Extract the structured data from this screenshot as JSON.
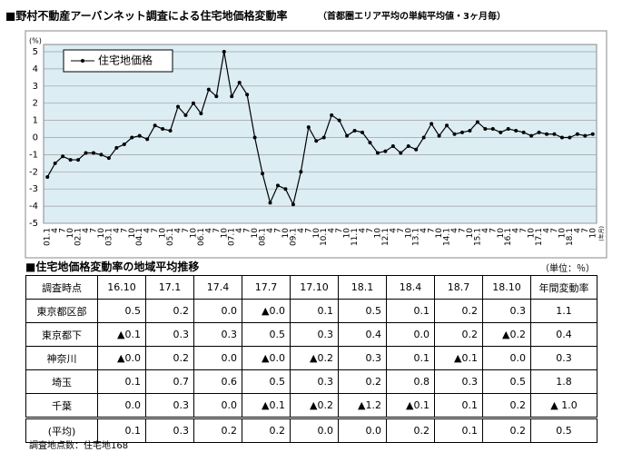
{
  "chart_data": {
    "type": "line",
    "title": "■野村不動産アーバンネット調査による住宅地価格変動率",
    "subtitle": "（首都圏エリア平均の単純平均値・3ヶ月毎）",
    "y_unit": "(%)",
    "x_unit": "(年月)",
    "categories": [
      "01.1",
      "4",
      "7",
      "10",
      "02.1",
      "4",
      "7",
      "10",
      "03.1",
      "4",
      "7",
      "10",
      "04.1",
      "4",
      "7",
      "10",
      "05.1",
      "4",
      "7",
      "10",
      "06.1",
      "4",
      "7",
      "10",
      "07.1",
      "4",
      "7",
      "10",
      "08.1",
      "4",
      "7",
      "10",
      "09.1",
      "4",
      "7",
      "10",
      "10.1",
      "4",
      "7",
      "10",
      "11.1",
      "4",
      "7",
      "10",
      "12.1",
      "4",
      "7",
      "10",
      "13.1",
      "4",
      "7",
      "10",
      "14.1",
      "4",
      "7",
      "10",
      "15.1",
      "4",
      "7",
      "10",
      "16.1",
      "4",
      "7",
      "10",
      "17.1",
      "4",
      "7",
      "10",
      "18.1",
      "4",
      "7",
      "10"
    ],
    "series": [
      {
        "name": "住宅地価格",
        "color": "#000000",
        "values": [
          -2.3,
          -1.5,
          -1.1,
          -1.3,
          -1.3,
          -0.9,
          -0.9,
          -1.0,
          -1.2,
          -0.6,
          -0.4,
          0.0,
          0.1,
          -0.1,
          0.7,
          0.5,
          0.4,
          1.8,
          1.3,
          2.0,
          1.4,
          2.8,
          2.4,
          5.0,
          2.4,
          3.2,
          2.5,
          0.0,
          -2.1,
          -3.8,
          -2.8,
          -3.0,
          -3.9,
          -2.0,
          0.6,
          -0.2,
          0.0,
          1.3,
          1.0,
          0.1,
          0.4,
          0.3,
          -0.3,
          -0.9,
          -0.8,
          -0.5,
          -0.9,
          -0.5,
          -0.7,
          0.0,
          0.8,
          0.1,
          0.7,
          0.2,
          0.3,
          0.4,
          0.9,
          0.5,
          0.5,
          0.3,
          0.5,
          0.4,
          0.3,
          0.1,
          0.3,
          0.2,
          0.2,
          0.0,
          0.0,
          0.2,
          0.1,
          0.2
        ]
      }
    ],
    "ylim": [
      -5,
      5
    ],
    "yticks": [
      -5,
      -4,
      -3,
      -2,
      -1,
      0,
      1,
      2,
      3,
      4,
      5
    ],
    "grid": true,
    "legend": "top-left"
  },
  "table": {
    "title": "■住宅地価格変動率の地域平均推移",
    "unit": "（単位：％）",
    "header": [
      "調査時点",
      "16.10",
      "17.1",
      "17.4",
      "17.7",
      "17.10",
      "18.1",
      "18.4",
      "18.7",
      "18.10",
      "年間変動率"
    ],
    "rows": [
      [
        "東京都区部",
        "0.5",
        "0.2",
        "0.0",
        "▲0.0",
        "0.1",
        "0.5",
        "0.1",
        "0.2",
        "0.3",
        "1.1"
      ],
      [
        "東京都下",
        "▲0.1",
        "0.3",
        "0.3",
        "0.5",
        "0.3",
        "0.4",
        "0.0",
        "0.2",
        "▲0.2",
        "0.4"
      ],
      [
        "神奈川",
        "▲0.0",
        "0.2",
        "0.0",
        "▲0.0",
        "▲0.2",
        "0.3",
        "0.1",
        "▲0.1",
        "0.0",
        "0.3"
      ],
      [
        "埼玉",
        "0.1",
        "0.7",
        "0.6",
        "0.5",
        "0.3",
        "0.2",
        "0.8",
        "0.3",
        "0.5",
        "1.8"
      ],
      [
        "千葉",
        "0.0",
        "0.3",
        "0.0",
        "▲0.1",
        "▲0.2",
        "▲1.2",
        "▲0.1",
        "0.1",
        "0.2",
        "▲ 1.0"
      ],
      [
        "(平均)",
        "0.1",
        "0.3",
        "0.2",
        "0.2",
        "0.0",
        "0.0",
        "0.2",
        "0.1",
        "0.2",
        "0.5"
      ]
    ],
    "note": "調査地点数：住宅地168"
  }
}
